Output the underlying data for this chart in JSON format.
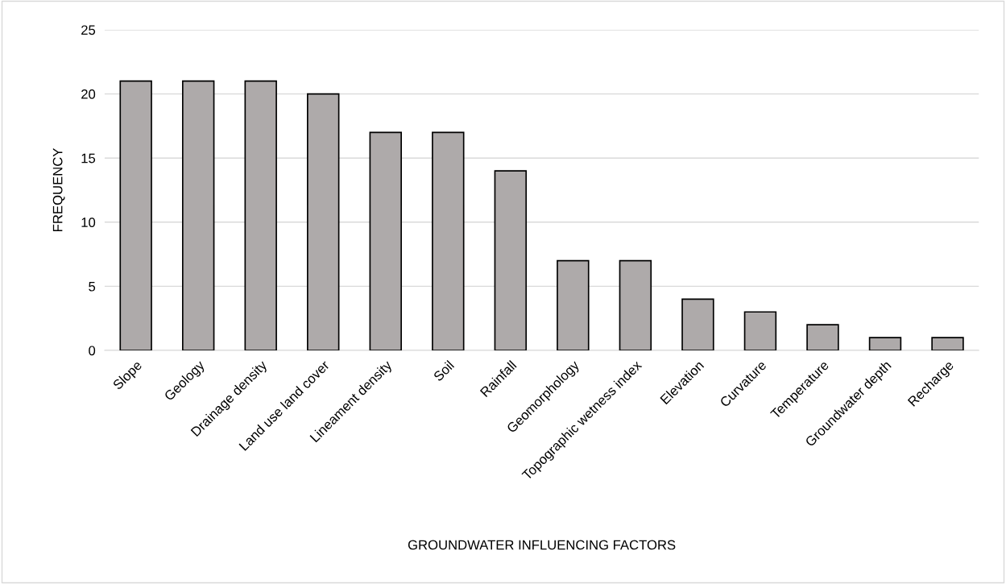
{
  "chart_data": {
    "type": "bar",
    "xlabel": "GROUNDWATER INFLUENCING FACTORS",
    "ylabel": "FREQUENCY",
    "categories": [
      "Slope",
      "Geology",
      "Drainage density",
      "Land use land cover",
      "Lineament density",
      "Soil",
      "Rainfall",
      "Geomorphology",
      "Topographic wetness index",
      "Elevation",
      "Curvature",
      "Temperature",
      "Groundwater depth",
      "Recharge"
    ],
    "values": [
      21,
      21,
      21,
      20,
      17,
      17,
      14,
      7,
      7,
      4,
      3,
      2,
      1,
      1
    ],
    "color": "#aeaaaa",
    "ylim": [
      0,
      25
    ],
    "yticks": [
      0,
      5,
      10,
      15,
      20,
      25
    ],
    "grid": "y"
  }
}
